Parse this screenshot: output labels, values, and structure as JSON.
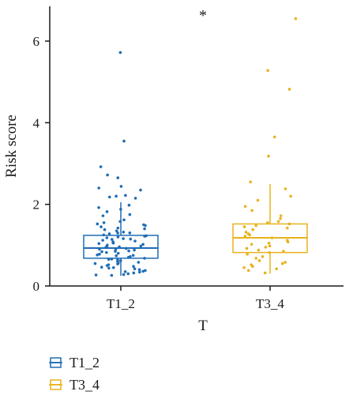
{
  "chart_data": {
    "type": "box",
    "xlabel": "T",
    "ylabel": "Risk score",
    "ylim": [
      0,
      6.8
    ],
    "yticks": [
      0,
      2,
      4,
      6
    ],
    "categories": [
      "T1_2",
      "T3_4"
    ],
    "significance": "*",
    "grid": false,
    "legend_position": "bottom-left",
    "legend": [
      {
        "label": "T1_2",
        "color": "#1f6db5"
      },
      {
        "label": "T3_4",
        "color": "#e8b21c"
      }
    ],
    "series": [
      {
        "name": "T1_2",
        "color": "#1f6db5",
        "box": {
          "min": 0.25,
          "q1": 0.68,
          "median": 0.93,
          "q3": 1.24,
          "max": 2.05
        },
        "points": [
          5.72,
          3.55,
          2.92,
          2.72,
          2.65,
          2.44,
          2.4,
          2.35,
          2.22,
          2.2,
          2.18,
          2.15,
          1.98,
          1.92,
          1.88,
          1.82,
          1.75,
          1.72,
          1.62,
          1.58,
          1.55,
          1.52,
          1.5,
          1.48,
          1.45,
          1.42,
          1.4,
          1.38,
          1.35,
          1.32,
          1.3,
          1.28,
          1.25,
          1.23,
          1.2,
          1.18,
          1.16,
          1.14,
          1.12,
          1.1,
          1.08,
          1.06,
          1.04,
          1.02,
          1.0,
          0.98,
          0.96,
          0.94,
          0.92,
          0.9,
          0.88,
          0.86,
          0.84,
          0.82,
          0.8,
          0.78,
          0.76,
          0.74,
          0.72,
          0.7,
          0.68,
          0.66,
          0.64,
          0.62,
          0.6,
          0.58,
          0.56,
          0.54,
          0.52,
          0.5,
          0.48,
          0.46,
          0.44,
          0.42,
          0.4,
          0.38,
          0.36,
          0.34,
          0.32,
          0.3,
          0.28,
          0.27,
          0.26,
          1.05,
          0.95,
          0.85,
          1.15,
          0.75,
          0.65,
          1.22,
          0.55,
          0.45,
          0.35,
          1.3,
          0.9
        ]
      },
      {
        "name": "T3_4",
        "color": "#e8b21c",
        "box": {
          "min": 0.3,
          "q1": 0.82,
          "median": 1.18,
          "q3": 1.52,
          "max": 2.5
        },
        "points": [
          6.55,
          5.28,
          4.82,
          3.65,
          3.18,
          2.55,
          2.38,
          2.2,
          2.1,
          1.95,
          1.85,
          1.72,
          1.65,
          1.58,
          1.52,
          1.48,
          1.42,
          1.38,
          1.32,
          1.28,
          1.22,
          1.18,
          1.12,
          1.08,
          1.02,
          0.98,
          0.92,
          0.88,
          0.82,
          0.78,
          0.72,
          0.68,
          0.62,
          0.58,
          0.52,
          0.48,
          0.45,
          0.42,
          0.38,
          0.32,
          1.25,
          1.05,
          0.95,
          1.45,
          0.85,
          1.55,
          0.55
        ]
      }
    ]
  }
}
